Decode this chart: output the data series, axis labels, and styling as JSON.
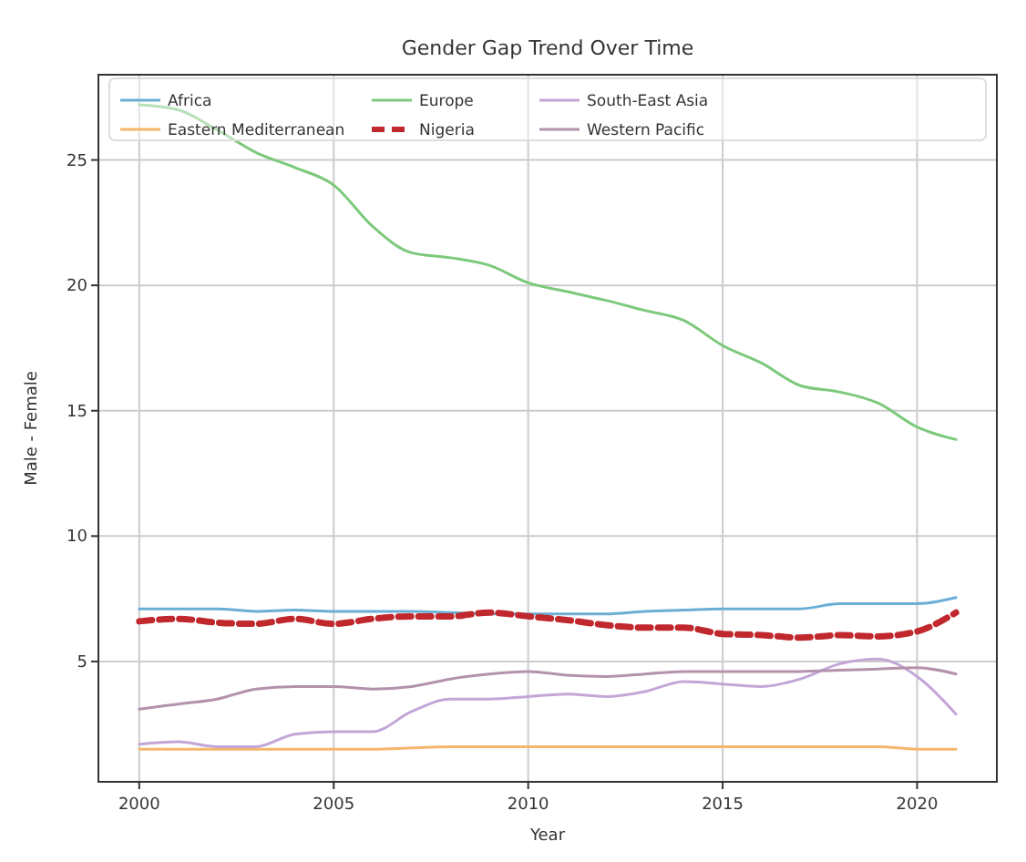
{
  "chart_data": {
    "type": "line",
    "title": "Gender Gap Trend Over Time",
    "xlabel": "Year",
    "ylabel": "Male - Female",
    "x": [
      2000,
      2001,
      2002,
      2003,
      2004,
      2005,
      2006,
      2007,
      2008,
      2009,
      2010,
      2011,
      2012,
      2013,
      2014,
      2015,
      2016,
      2017,
      2018,
      2019,
      2020,
      2021
    ],
    "xlim": [
      1998.95,
      2022.05
    ],
    "xticks": [
      2000,
      2005,
      2010,
      2015,
      2020
    ],
    "ylim": [
      0.2,
      28.4
    ],
    "yticks": [
      5,
      10,
      15,
      20,
      25
    ],
    "grid": true,
    "legend": "top",
    "line_style": "solid",
    "series": [
      {
        "name": "Africa",
        "color": "#6aaed6",
        "values": [
          7.1,
          7.1,
          7.1,
          7.0,
          7.05,
          7.0,
          7.0,
          7.0,
          6.95,
          6.9,
          6.9,
          6.9,
          6.9,
          7.0,
          7.05,
          7.1,
          7.1,
          7.1,
          7.3,
          7.3,
          7.3,
          7.55
        ]
      },
      {
        "name": "Eastern Mediterranean",
        "color": "#f5b66b",
        "values": [
          1.5,
          1.5,
          1.5,
          1.5,
          1.5,
          1.5,
          1.5,
          1.55,
          1.6,
          1.6,
          1.6,
          1.6,
          1.6,
          1.6,
          1.6,
          1.6,
          1.6,
          1.6,
          1.6,
          1.6,
          1.5,
          1.5
        ]
      },
      {
        "name": "Europe",
        "color": "#7cc97c",
        "values": [
          27.2,
          27.0,
          26.2,
          25.3,
          24.7,
          24.0,
          22.35,
          21.3,
          21.1,
          20.8,
          20.1,
          19.75,
          19.4,
          19.0,
          18.6,
          17.6,
          16.9,
          16.0,
          15.75,
          15.3,
          14.35,
          13.85
        ]
      },
      {
        "name": "Nigeria",
        "color": "#c0282d",
        "line_style": "dashed",
        "values": [
          6.6,
          6.7,
          6.55,
          6.5,
          6.7,
          6.5,
          6.7,
          6.8,
          6.8,
          6.95,
          6.8,
          6.65,
          6.45,
          6.35,
          6.35,
          6.1,
          6.05,
          5.95,
          6.05,
          6.0,
          6.2,
          6.95
        ]
      },
      {
        "name": "South-East Asia",
        "color": "#c3a6d8",
        "values": [
          1.7,
          1.8,
          1.6,
          1.6,
          2.1,
          2.2,
          2.2,
          3.0,
          3.5,
          3.5,
          3.6,
          3.7,
          3.6,
          3.8,
          4.2,
          4.1,
          4.0,
          4.3,
          4.9,
          5.1,
          4.4,
          2.9
        ]
      },
      {
        "name": "Western Pacific",
        "color": "#b392ac",
        "values": [
          3.1,
          3.3,
          3.5,
          3.9,
          4.0,
          4.0,
          3.9,
          4.0,
          4.3,
          4.5,
          4.6,
          4.45,
          4.4,
          4.5,
          4.6,
          4.6,
          4.6,
          4.6,
          4.65,
          4.7,
          4.75,
          4.5
        ]
      }
    ]
  }
}
